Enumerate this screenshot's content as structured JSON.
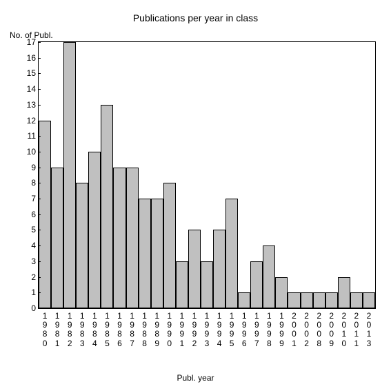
{
  "chart": {
    "type": "bar",
    "title": "Publications per year in class",
    "title_fontsize": 14,
    "ylabel": "No. of Publ.",
    "xlabel": "Publ. year",
    "label_fontsize": 12,
    "background_color": "#ffffff",
    "bar_color": "#c0c0c0",
    "bar_border_color": "#000000",
    "axis_color": "#000000",
    "ylim": [
      0,
      17
    ],
    "yticks": [
      0,
      1,
      2,
      3,
      4,
      5,
      6,
      7,
      8,
      9,
      10,
      11,
      12,
      13,
      14,
      15,
      16,
      17
    ],
    "categories": [
      "1980",
      "1981",
      "1982",
      "1983",
      "1984",
      "1985",
      "1986",
      "1987",
      "1988",
      "1989",
      "1990",
      "1991",
      "1992",
      "1993",
      "1994",
      "1995",
      "1996",
      "1997",
      "1998",
      "1999",
      "2001",
      "2002",
      "2008",
      "2009",
      "2010",
      "2011",
      "2013"
    ],
    "values": [
      12,
      9,
      17,
      8,
      10,
      13,
      9,
      9,
      7,
      7,
      8,
      3,
      5,
      3,
      5,
      7,
      1,
      3,
      4,
      2,
      1,
      1,
      1,
      1,
      2,
      1,
      1
    ],
    "bar_width": 1.0,
    "font_family": "Arial"
  }
}
